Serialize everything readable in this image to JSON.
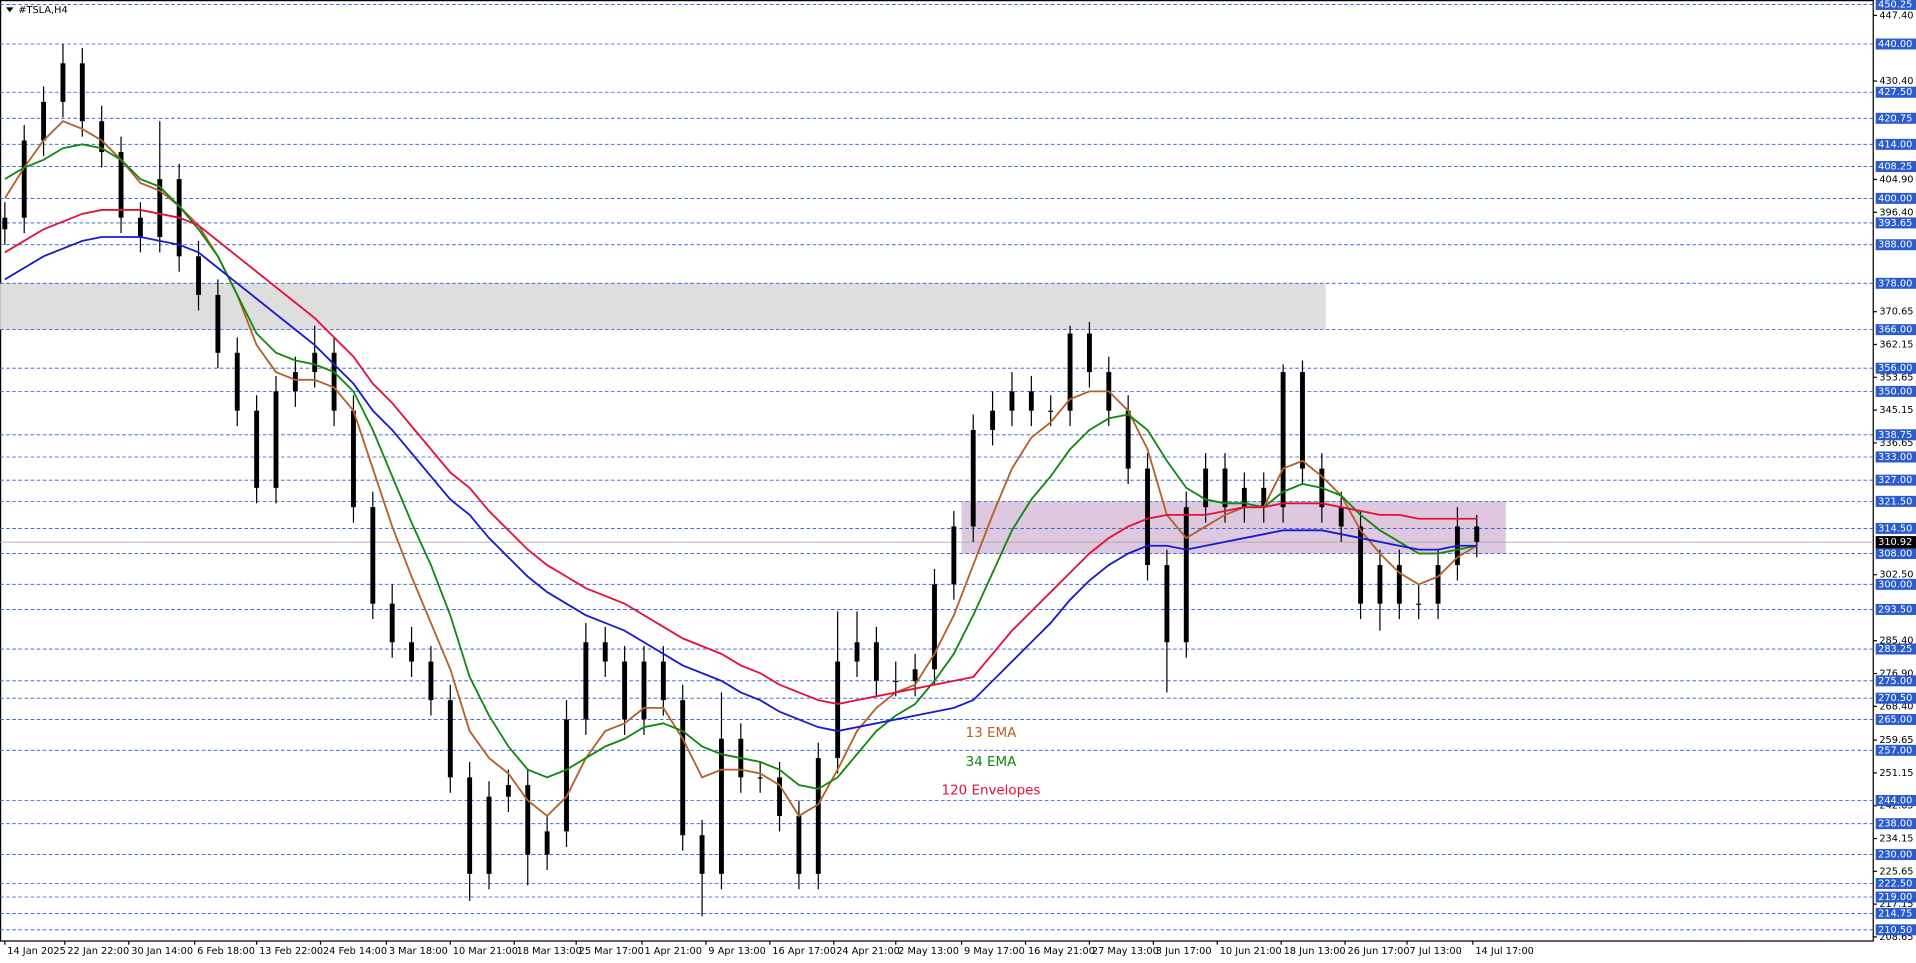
{
  "chart_data": {
    "type": "candlestick",
    "title": "#TSLA,H4",
    "x": [
      0,
      1,
      2,
      3,
      4,
      5,
      6,
      7,
      8,
      9,
      10,
      11,
      12,
      13,
      14,
      15,
      16,
      17,
      18,
      19,
      20,
      21,
      22,
      23,
      24,
      25,
      26,
      27,
      28,
      29,
      30,
      31,
      32,
      33,
      34,
      35,
      36,
      37,
      38,
      39,
      40,
      41,
      42,
      43,
      44,
      45,
      46,
      47,
      48,
      49,
      50,
      51,
      52,
      53,
      54,
      55,
      56,
      57,
      58,
      59,
      60,
      61,
      62,
      63,
      64,
      65,
      66,
      67,
      68,
      69,
      70,
      71,
      72,
      73,
      74,
      75,
      76
    ],
    "open": [
      392,
      395,
      415,
      425,
      435,
      420,
      412,
      395,
      390,
      405,
      385,
      375,
      360,
      345,
      325,
      350,
      355,
      360,
      345,
      320,
      295,
      285,
      280,
      270,
      250,
      225,
      245,
      248,
      230,
      236,
      265,
      285,
      280,
      265,
      280,
      270,
      235,
      225,
      260,
      250,
      250,
      240,
      225,
      255,
      280,
      285,
      275,
      275,
      278,
      300,
      315,
      340,
      345,
      350,
      345,
      345,
      365,
      355,
      345,
      330,
      305,
      285,
      320,
      330,
      320,
      325,
      320,
      355,
      330,
      320,
      315,
      295,
      305,
      295,
      295,
      305,
      315
    ],
    "high": [
      399,
      419,
      429,
      440,
      439,
      424,
      416,
      399,
      420,
      409,
      389,
      379,
      364,
      349,
      354,
      359,
      367,
      364,
      349,
      324,
      300,
      289,
      284,
      274,
      254,
      249,
      252,
      252,
      240,
      270,
      290,
      289,
      284,
      284,
      284,
      274,
      239,
      272,
      264,
      254,
      254,
      244,
      259,
      293,
      293,
      289,
      280,
      282,
      304,
      319,
      344,
      350,
      355,
      354,
      349,
      367,
      368,
      359,
      349,
      334,
      309,
      324,
      334,
      334,
      329,
      329,
      357,
      358,
      334,
      324,
      319,
      309,
      309,
      300,
      309,
      320,
      318
    ],
    "low": [
      388,
      391,
      411,
      421,
      416,
      408,
      391,
      386,
      386,
      381,
      371,
      356,
      341,
      321,
      321,
      346,
      351,
      341,
      316,
      291,
      281,
      276,
      266,
      246,
      218,
      221,
      241,
      222,
      226,
      232,
      261,
      276,
      261,
      261,
      266,
      231,
      214,
      221,
      246,
      246,
      236,
      221,
      221,
      251,
      276,
      271,
      271,
      271,
      274,
      296,
      311,
      336,
      341,
      341,
      341,
      341,
      351,
      341,
      326,
      301,
      272,
      281,
      316,
      316,
      316,
      316,
      316,
      326,
      316,
      311,
      291,
      288,
      291,
      291,
      291,
      301,
      307
    ],
    "close": [
      395,
      415,
      425,
      435,
      420,
      412,
      395,
      390,
      405,
      385,
      375,
      360,
      345,
      325,
      350,
      355,
      360,
      345,
      320,
      295,
      285,
      280,
      270,
      250,
      225,
      245,
      248,
      230,
      236,
      265,
      285,
      280,
      265,
      280,
      270,
      235,
      225,
      260,
      250,
      250,
      240,
      225,
      255,
      280,
      285,
      275,
      275,
      278,
      300,
      315,
      340,
      345,
      350,
      345,
      345,
      365,
      355,
      345,
      330,
      305,
      285,
      320,
      330,
      320,
      325,
      320,
      355,
      330,
      320,
      315,
      295,
      305,
      295,
      295,
      305,
      315,
      311
    ],
    "candle_color": "#000000",
    "series": [
      {
        "name": "13 EMA",
        "color": "#b5602a",
        "values": [
          400,
          408,
          415,
          420,
          418,
          415,
          410,
          404,
          402,
          398,
          393,
          385,
          375,
          362,
          355,
          353,
          353,
          351,
          345,
          330,
          315,
          302,
          290,
          278,
          262,
          255,
          251,
          244,
          240,
          245,
          255,
          262,
          264,
          268,
          268,
          260,
          250,
          252,
          252,
          251,
          248,
          240,
          243,
          252,
          262,
          268,
          272,
          274,
          282,
          292,
          305,
          318,
          330,
          338,
          342,
          348,
          350,
          350,
          345,
          335,
          318,
          312,
          315,
          318,
          320,
          320,
          330,
          332,
          328,
          323,
          314,
          308,
          303,
          300,
          302,
          307,
          310
        ]
      },
      {
        "name": "34 EMA",
        "color": "#118811",
        "values": [
          405,
          408,
          410,
          413,
          414,
          413,
          410,
          405,
          403,
          398,
          392,
          385,
          375,
          365,
          360,
          358,
          357,
          355,
          350,
          340,
          328,
          316,
          305,
          292,
          276,
          266,
          258,
          252,
          250,
          252,
          255,
          258,
          260,
          263,
          264,
          262,
          258,
          256,
          255,
          254,
          252,
          248,
          247,
          250,
          256,
          262,
          266,
          269,
          275,
          282,
          292,
          303,
          314,
          322,
          328,
          335,
          340,
          343,
          344,
          340,
          332,
          325,
          322,
          321,
          321,
          320,
          324,
          326,
          325,
          323,
          318,
          314,
          311,
          308,
          308,
          309,
          310
        ]
      },
      {
        "name": "120 Envelopes",
        "color": "#e5103a",
        "values": [
          386,
          389,
          392,
          394,
          396,
          397,
          397,
          397,
          396,
          395,
          393,
          389,
          385,
          381,
          377,
          373,
          369,
          364,
          359,
          352,
          347,
          341,
          335,
          329,
          325,
          319,
          314,
          309,
          305,
          302,
          299,
          297,
          295,
          292,
          289,
          286,
          284,
          282,
          279,
          277,
          274,
          272,
          270,
          269,
          270,
          271,
          272,
          273,
          274,
          275,
          276,
          282,
          288,
          293,
          298,
          303,
          308,
          312,
          315,
          317,
          318,
          318,
          318,
          319,
          320,
          320,
          321,
          321,
          321,
          320,
          319,
          318,
          318,
          317,
          317,
          317,
          317
        ],
        "lower": [
          379,
          382,
          385,
          387,
          389,
          390,
          390,
          390,
          389,
          388,
          386,
          382,
          378,
          374,
          370,
          366,
          362,
          357,
          352,
          345,
          340,
          334,
          328,
          322,
          318,
          312,
          307,
          302,
          298,
          295,
          292,
          290,
          288,
          285,
          282,
          279,
          277,
          275,
          272,
          270,
          267,
          265,
          263,
          262,
          263,
          264,
          265,
          266,
          267,
          268,
          270,
          275,
          280,
          285,
          290,
          296,
          301,
          305,
          308,
          310,
          310,
          309,
          310,
          311,
          312,
          313,
          314,
          314,
          314,
          313,
          312,
          311,
          310,
          309,
          309,
          310,
          310
        ],
        "lower_color": "#1a1ad0"
      }
    ],
    "zones": [
      {
        "y": [
          366,
          378
        ],
        "x": [
          -0.25,
          68.2
        ],
        "color": "#dadada"
      },
      {
        "y": [
          308,
          321.5
        ],
        "x": [
          49.4,
          77.5
        ],
        "color": "#d9c2dc"
      }
    ],
    "last_price": 310.92,
    "levels": [
      {
        "value": 450.25,
        "label": "450.25"
      },
      {
        "value": 440,
        "label": "440.00"
      },
      {
        "value": 427.5,
        "label": "427.50"
      },
      420.75,
      {
        "value": 414,
        "label": "414.00"
      },
      408.25,
      {
        "value": 400,
        "label": "400.00"
      },
      393.65,
      {
        "value": 388,
        "label": "388.00"
      },
      {
        "value": 378,
        "label": "378.00"
      },
      {
        "value": 366,
        "label": "366.00"
      },
      {
        "value": 356,
        "label": "356.00"
      },
      {
        "value": 350,
        "label": "350.00"
      },
      338.75,
      {
        "value": 333,
        "label": "333.00"
      },
      {
        "value": 327,
        "label": "327.00"
      },
      {
        "value": 321.5,
        "label": "321.50"
      },
      {
        "value": 314.5,
        "label": "314.50"
      },
      {
        "value": 308,
        "label": "308.00"
      },
      {
        "value": 300,
        "label": "300.00"
      },
      {
        "value": 293.5,
        "label": "293.50"
      },
      283.25,
      {
        "value": 275,
        "label": "275.00"
      },
      {
        "value": 270.5,
        "label": "270.50"
      },
      {
        "value": 265,
        "label": "265.00"
      },
      {
        "value": 257,
        "label": "257.00"
      },
      {
        "value": 244,
        "label": "244.00"
      },
      {
        "value": 238,
        "label": "238.00"
      },
      {
        "value": 230,
        "label": "230.00"
      },
      {
        "value": 222.5,
        "label": "222.50"
      },
      {
        "value": 219,
        "label": "219.00"
      },
      214.75,
      {
        "value": 210.5,
        "label": "210.50"
      }
    ],
    "ylim": [
      207.6,
      451.4
    ],
    "yticks": [
      {
        "value": 447.4,
        "label": "447.40"
      },
      {
        "value": 430.4,
        "label": "430.40"
      },
      {
        "value": 404.9,
        "label": "404.90"
      },
      {
        "value": 396.4,
        "label": "396.40"
      },
      370.65,
      362.15,
      353.65,
      345.15,
      336.65,
      {
        "value": 302.5,
        "label": "302.50"
      },
      {
        "value": 285.4,
        "label": "285.40"
      },
      {
        "value": 276.9,
        "label": "276.90"
      },
      {
        "value": 268.4,
        "label": "268.40"
      },
      259.65,
      251.15,
      242.65,
      234.15,
      225.65,
      217.15,
      208.65
    ],
    "xlim": [
      -0.25,
      96.47
    ],
    "xticks": [
      {
        "value": 0,
        "label": "14 Jan 2025"
      },
      {
        "value": 3.1,
        "label": "22 Jan 22:00"
      },
      {
        "value": 6.4,
        "label": "30 Jan 14:00"
      },
      {
        "value": 9.8,
        "label": "6 Feb 18:00"
      },
      {
        "value": 13,
        "label": "13 Feb 22:00"
      },
      {
        "value": 16.3,
        "label": "24 Feb 14:00"
      },
      {
        "value": 19.7,
        "label": "3 Mar 18:00"
      },
      {
        "value": 23,
        "label": "10 Mar 21:00"
      },
      {
        "value": 26.3,
        "label": "18 Mar 13:00"
      },
      {
        "value": 29.5,
        "label": "25 Mar 17:00"
      },
      {
        "value": 32.9,
        "label": "1 Apr 21:00"
      },
      {
        "value": 36.2,
        "label": "9 Apr 13:00"
      },
      {
        "value": 39.5,
        "label": "16 Apr 17:00"
      },
      {
        "value": 42.8,
        "label": "24 Apr 21:00"
      },
      {
        "value": 46,
        "label": "2 May 13:00"
      },
      {
        "value": 49.4,
        "label": "9 May 17:00"
      },
      {
        "value": 52.7,
        "label": "16 May 21:00"
      },
      {
        "value": 56,
        "label": "27 May 13:00"
      },
      {
        "value": 59.3,
        "label": "3 Jun 17:00"
      },
      {
        "value": 62.6,
        "label": "10 Jun 21:00"
      },
      {
        "value": 65.9,
        "label": "18 Jun 13:00"
      },
      {
        "value": 69.2,
        "label": "26 Jun 17:00"
      },
      {
        "value": 72.4,
        "label": "7 Jul 13:00"
      },
      {
        "value": 75.8,
        "label": "14 Jul 17:00"
      }
    ],
    "level_color": "#2a5bd0"
  }
}
